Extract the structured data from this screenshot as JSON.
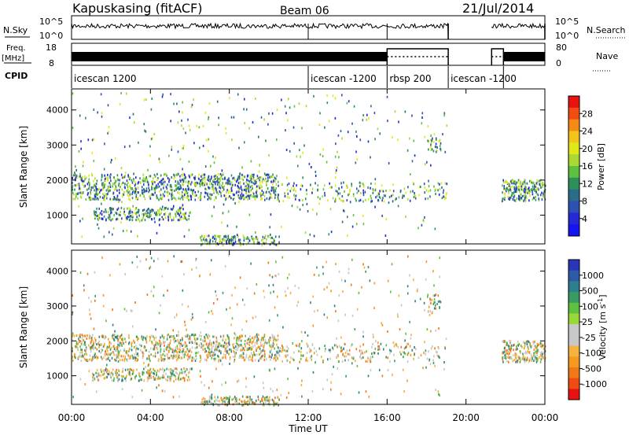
{
  "header": {
    "title": "Kapuskasing (fitACF)",
    "beam": "Beam 06",
    "date": "21/Jul/2014"
  },
  "chart_data": [
    {
      "type": "line",
      "panel": "sky-search",
      "left_label": "N.Sky",
      "right_label": "N.Search",
      "left_ticks": [
        "10^5",
        "10^0"
      ],
      "right_ticks": [
        "10^5",
        "10^0"
      ],
      "segments": [
        {
          "x": [
            0.0,
            19.1
          ],
          "level": "high"
        },
        {
          "x": [
            21.3,
            24.0
          ],
          "level": "high"
        }
      ],
      "dropouts": [
        12.0,
        16.0
      ]
    },
    {
      "type": "line",
      "panel": "freq-nave",
      "left_label": "Freq.",
      "left_unit": "[MHz]",
      "right_label": "Nave",
      "left_ticks": [
        "18",
        "8"
      ],
      "right_ticks": [
        "80",
        "0"
      ],
      "freq_segments": [
        {
          "x": [
            0.0,
            16.0
          ]
        },
        {
          "x": [
            21.9,
            24.0
          ]
        }
      ],
      "dotted_segments": [
        {
          "x": [
            16.0,
            19.1
          ]
        },
        {
          "x": [
            21.3,
            21.9
          ]
        }
      ],
      "box_segments": [
        {
          "x": [
            16.0,
            19.1
          ]
        },
        {
          "x": [
            21.3,
            21.9
          ]
        }
      ]
    },
    {
      "type": "table",
      "panel": "cpid",
      "label": "CPID",
      "modes": [
        {
          "start": 0.0,
          "name": "icescan 1200"
        },
        {
          "start": 12.0,
          "name": "icescan -1200"
        },
        {
          "start": 16.0,
          "name": "rbsp 200"
        },
        {
          "start": 19.1,
          "name": "icescan -1200"
        },
        {
          "start": 21.9,
          "name": ""
        }
      ]
    },
    {
      "type": "heatmap",
      "panel": "power",
      "ylabel": "Slant Range [km]",
      "ylim": [
        180,
        4600
      ],
      "yticks": [
        1000,
        2000,
        3000,
        4000
      ],
      "colorbar_label": "Power [dB]",
      "colorbar_ticks": [
        "28",
        "24",
        "20",
        "16",
        "12",
        "8",
        "4"
      ],
      "colorbar_colors": [
        "#e8130f",
        "#f24c12",
        "#f58a16",
        "#f3c518",
        "#e1e81a",
        "#a9d932",
        "#5fbf3f",
        "#2e8f5b",
        "#2a6d8a",
        "#2e50b0",
        "#2628d8",
        "#1414f0"
      ]
    },
    {
      "type": "heatmap",
      "panel": "velocity",
      "ylabel": "Slant Range [km]",
      "ylim": [
        180,
        4600
      ],
      "yticks": [
        1000,
        2000,
        3000,
        4000
      ],
      "xlabel": "Time UT",
      "xlim": [
        0,
        24
      ],
      "xticks": [
        "00:00",
        "04:00",
        "08:00",
        "12:00",
        "16:00",
        "20:00",
        "00:00"
      ],
      "colorbar_label": "Velocity [m s",
      "colorbar_label_sup": "-1",
      "colorbar_label_end": "]",
      "colorbar_ticks": [
        "1000",
        "500",
        "100",
        "25",
        "-25",
        "-100",
        "-500",
        "-1000"
      ],
      "colorbar_colors": [
        "#2a35b8",
        "#2c5aa8",
        "#2f7e8f",
        "#3a9a64",
        "#5fbf3f",
        "#9ad83a",
        "#c8c8c8",
        "#c8c8c8",
        "#f5b23c",
        "#f59a1e",
        "#f07818",
        "#f04c12",
        "#e8130f"
      ]
    }
  ]
}
